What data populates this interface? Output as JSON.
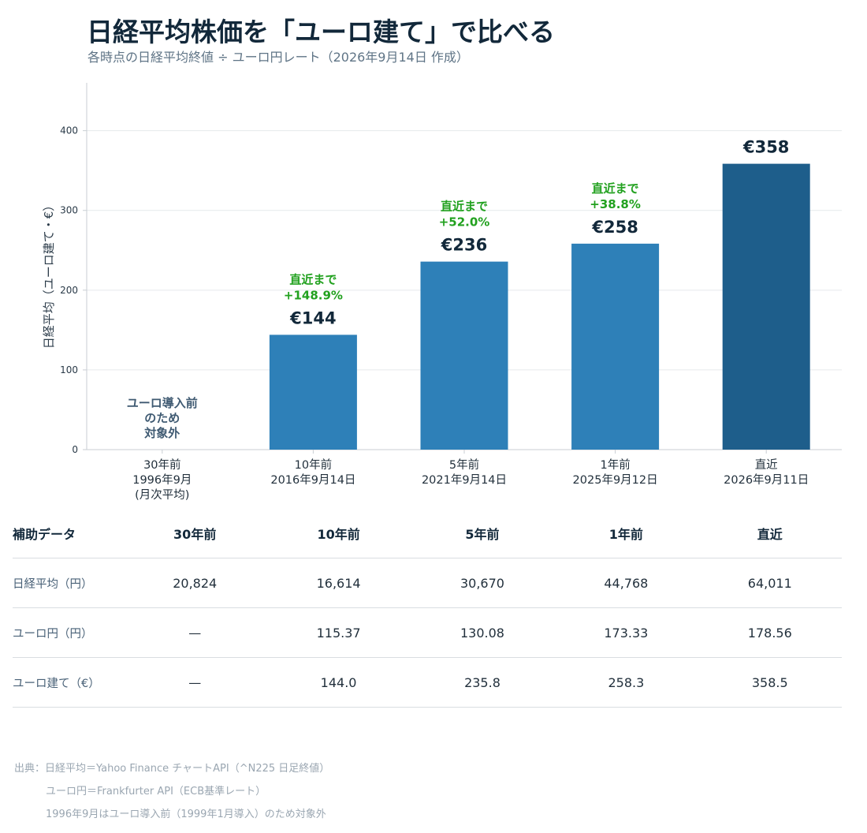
{
  "header": {
    "title": "日経平均株価を「ユーロ建て」で比べる",
    "subtitle": "各時点の日経平均終値 ÷ ユーロ円レート（2026年9月14日 作成）"
  },
  "chart_data": {
    "type": "bar",
    "ylabel": "日経平均（ユーロ建て・€）",
    "ylim": [
      0,
      460
    ],
    "yticks": [
      0,
      100,
      200,
      300,
      400
    ],
    "grid": true,
    "categories": [
      [
        "30年前",
        "1996年9月",
        "(月次平均)"
      ],
      [
        "10年前",
        "2016年9月14日"
      ],
      [
        "5年前",
        "2021年9月14日"
      ],
      [
        "1年前",
        "2025年9月12日"
      ],
      [
        "直近",
        "2026年9月11日"
      ]
    ],
    "values": [
      null,
      144.0,
      235.8,
      258.3,
      358.5
    ],
    "value_labels": [
      "",
      "€144",
      "€236",
      "€258",
      "€358"
    ],
    "change_labels": [
      [],
      [
        "直近まで",
        "+148.9%"
      ],
      [
        "直近まで",
        "+52.0%"
      ],
      [
        "直近まで",
        "+38.8%"
      ],
      []
    ],
    "missing_note": [
      "ユーロ導入前",
      "のため",
      "対象外"
    ],
    "colors": {
      "bar": "#2e80b8",
      "latest_bar": "#1e5e8b",
      "change": "#22a11f",
      "note": "#3f5a72"
    }
  },
  "table": {
    "header_label": "補助データ",
    "columns": [
      "30年前",
      "10年前",
      "5年前",
      "1年前",
      "直近"
    ],
    "rows": [
      {
        "label": "日経平均（円）",
        "values": [
          "20,824",
          "16,614",
          "30,670",
          "44,768",
          "64,011"
        ]
      },
      {
        "label": "ユーロ円（円）",
        "values": [
          "—",
          "115.37",
          "130.08",
          "173.33",
          "178.56"
        ]
      },
      {
        "label": "ユーロ建て（€）",
        "values": [
          "—",
          "144.0",
          "235.8",
          "258.3",
          "358.5"
        ]
      }
    ]
  },
  "sources": [
    "出典：日経平均＝Yahoo Finance チャートAPI（^N225 日足終値）",
    "ユーロ円＝Frankfurter API（ECB基準レート）",
    "1996年9月はユーロ導入前（1999年1月導入）のため対象外"
  ]
}
